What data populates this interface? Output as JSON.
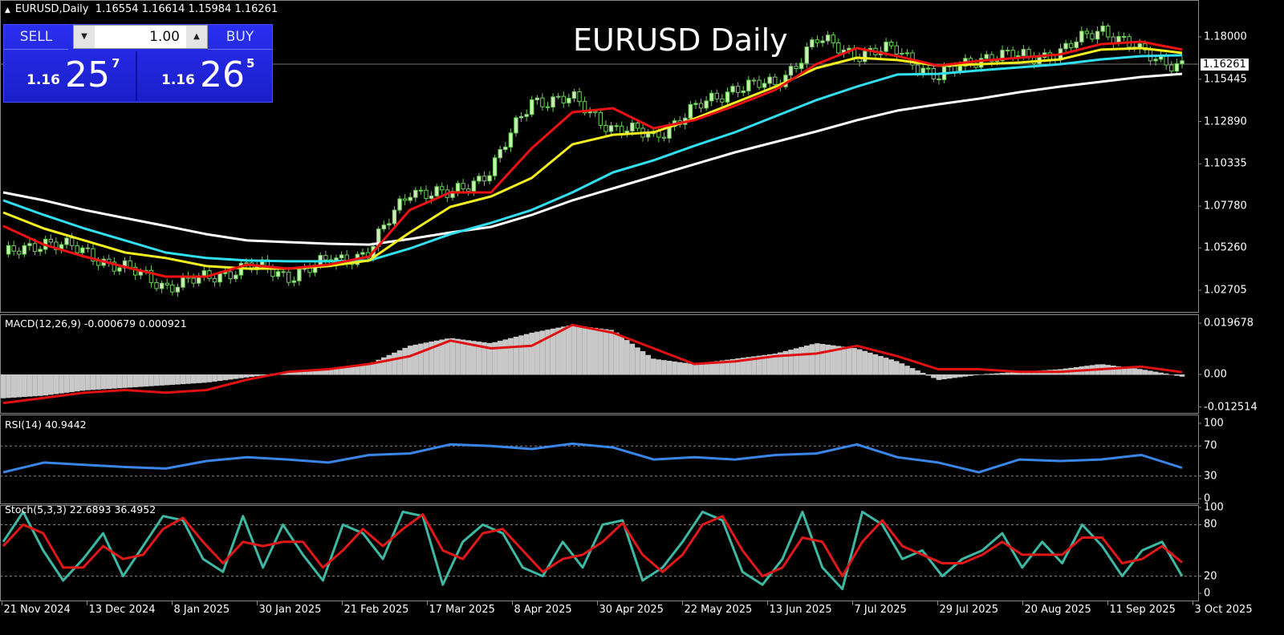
{
  "header": {
    "symbol": "EURUSD,Daily",
    "ohlc": "1.16554 1.16614 1.15984 1.16261"
  },
  "chart_title": "EURUSD Daily",
  "trade_panel": {
    "sell_label": "SELL",
    "buy_label": "BUY",
    "lot": "1.00",
    "sell_prefix": "1.16",
    "sell_big": "25",
    "sell_sup": "7",
    "buy_prefix": "1.16",
    "buy_big": "26",
    "buy_sup": "5"
  },
  "colors": {
    "bull": "#c8f0b0",
    "wick": "#6ccf5a",
    "ma_red": "#ee1111",
    "ma_yellow": "#f4f020",
    "ma_cyan": "#30e0f0",
    "ma_white": "#ffffff",
    "macd_hist": "#c8c8c8",
    "macd_signal": "#e01010",
    "rsi": "#3a86e8",
    "stoch_k": "#3cb8a4",
    "stoch_d": "#e01818"
  },
  "chart_data": [
    {
      "type": "candlestick",
      "panel": "price",
      "x_tick_labels": [
        "21 Nov 2024",
        "13 Dec 2024",
        "8 Jan 2025",
        "30 Jan 2025",
        "21 Feb 2025",
        "17 Mar 2025",
        "8 Apr 2025",
        "30 Apr 2025",
        "22 May 2025",
        "13 Jun 2025",
        "7 Jul 2025",
        "29 Jul 2025",
        "20 Aug 2025",
        "11 Sep 2025",
        "3 Oct 2025"
      ],
      "y_tick_labels": [
        "1.18000",
        "1.15445",
        "1.12890",
        "1.10335",
        "1.07780",
        "1.05260",
        "1.02705"
      ],
      "ylim": [
        1.018,
        1.196
      ],
      "current_price": "1.16261",
      "close_samples": [
        1.047,
        1.057,
        1.05,
        1.04,
        1.03,
        1.034,
        1.042,
        1.036,
        1.044,
        1.05,
        1.088,
        1.084,
        1.1,
        1.142,
        1.142,
        1.125,
        1.12,
        1.136,
        1.15,
        1.151,
        1.178,
        1.17,
        1.172,
        1.155,
        1.168,
        1.168,
        1.17,
        1.186,
        1.17,
        1.163
      ],
      "series": [
        {
          "key": "ma_white",
          "values": [
            1.0861,
            1.0813,
            1.0755,
            1.0706,
            1.0658,
            1.0609,
            1.0571,
            1.0561,
            1.0551,
            1.0546,
            1.058,
            1.0619,
            1.0653,
            1.0725,
            1.0813,
            1.0885,
            1.0958,
            1.1031,
            1.1103,
            1.1166,
            1.1229,
            1.1297,
            1.1355,
            1.1393,
            1.1427,
            1.1466,
            1.15,
            1.1529,
            1.1558,
            1.1577
          ]
        },
        {
          "key": "ma_cyan",
          "values": [
            1.0813,
            1.0725,
            1.0643,
            1.0571,
            1.0498,
            1.0465,
            1.045,
            1.0445,
            1.0445,
            1.045,
            1.0522,
            1.0609,
            1.0677,
            1.0755,
            1.0861,
            1.0982,
            1.1055,
            1.1142,
            1.1224,
            1.1321,
            1.1418,
            1.15,
            1.1573,
            1.1577,
            1.1597,
            1.1616,
            1.1635,
            1.1664,
            1.1684,
            1.1689
          ]
        },
        {
          "key": "ma_yellow",
          "values": [
            1.074,
            1.0643,
            1.0571,
            1.0498,
            1.0465,
            1.0416,
            1.0401,
            1.0401,
            1.0416,
            1.045,
            1.0619,
            1.0774,
            1.0837,
            1.0948,
            1.1151,
            1.1209,
            1.1224,
            1.1306,
            1.1403,
            1.15,
            1.1611,
            1.1674,
            1.166,
            1.1626,
            1.1635,
            1.1645,
            1.1664,
            1.1723,
            1.1732,
            1.1703
          ]
        },
        {
          "key": "ma_red",
          "values": [
            1.0658,
            1.0546,
            1.0474,
            1.0411,
            1.0353,
            1.0353,
            1.0425,
            1.0401,
            1.0425,
            1.0474,
            1.0755,
            1.0861,
            1.0861,
            1.1127,
            1.1345,
            1.1369,
            1.1248,
            1.1297,
            1.1384,
            1.1481,
            1.1635,
            1.1732,
            1.1684,
            1.1626,
            1.1655,
            1.1674,
            1.1694,
            1.1756,
            1.1771,
            1.1723
          ]
        }
      ]
    },
    {
      "type": "bar+line",
      "panel": "macd",
      "label": "MACD(12,26,9) -0.000679 0.000921",
      "y_tick_labels": [
        "0.019678",
        "0.00",
        "-0.012514"
      ],
      "ylim": [
        -0.0138,
        0.0222
      ],
      "histogram": [
        -0.009,
        -0.008,
        -0.006,
        -0.005,
        -0.004,
        -0.003,
        -0.001,
        0.001,
        0.002,
        0.004,
        0.011,
        0.014,
        0.012,
        0.016,
        0.019,
        0.017,
        0.006,
        0.004,
        0.006,
        0.008,
        0.012,
        0.01,
        0.005,
        -0.002,
        0.0,
        0.001,
        0.002,
        0.004,
        0.002,
        -0.0007
      ],
      "signal": [
        -0.011,
        -0.009,
        -0.007,
        -0.006,
        -0.007,
        -0.006,
        -0.002,
        0.001,
        0.002,
        0.004,
        0.007,
        0.013,
        0.01,
        0.011,
        0.019,
        0.016,
        0.01,
        0.004,
        0.005,
        0.007,
        0.008,
        0.011,
        0.007,
        0.002,
        0.002,
        0.001,
        0.001,
        0.002,
        0.003,
        0.0009
      ]
    },
    {
      "type": "line",
      "panel": "rsi",
      "label": "RSI(14) 40.9442",
      "y_tick_labels": [
        "100",
        "70",
        "30",
        "0"
      ],
      "levels": [
        70,
        30
      ],
      "ylim": [
        0,
        100
      ],
      "values": [
        35,
        48,
        45,
        42,
        40,
        50,
        55,
        52,
        48,
        58,
        60,
        72,
        70,
        66,
        73,
        68,
        52,
        55,
        52,
        58,
        60,
        72,
        55,
        48,
        35,
        52,
        50,
        52,
        58,
        41
      ]
    },
    {
      "type": "line",
      "panel": "stoch",
      "label": "Stoch(5,3,3) 22.6893 36.4952",
      "y_tick_labels": [
        "100",
        "80",
        "20",
        "0"
      ],
      "levels": [
        80,
        20
      ],
      "ylim": [
        0,
        100
      ],
      "k": [
        60,
        95,
        50,
        15,
        40,
        70,
        20,
        55,
        90,
        85,
        40,
        25,
        90,
        30,
        80,
        45,
        15,
        80,
        70,
        40,
        95,
        90,
        10,
        60,
        80,
        70,
        30,
        20,
        60,
        30,
        80,
        85,
        15,
        30,
        60,
        95,
        85,
        25,
        10,
        40,
        95,
        30,
        5,
        95,
        80,
        40,
        50,
        20,
        40,
        50,
        70,
        30,
        60,
        35,
        80,
        55,
        20,
        50,
        60,
        20
      ],
      "d": [
        55,
        80,
        70,
        30,
        30,
        55,
        40,
        45,
        75,
        88,
        60,
        35,
        60,
        55,
        60,
        60,
        30,
        50,
        75,
        55,
        75,
        92,
        50,
        40,
        70,
        75,
        50,
        25,
        40,
        45,
        60,
        82,
        45,
        25,
        45,
        80,
        90,
        50,
        20,
        30,
        65,
        60,
        20,
        60,
        85,
        55,
        45,
        35,
        35,
        45,
        60,
        45,
        45,
        45,
        65,
        65,
        35,
        40,
        55,
        36
      ]
    }
  ]
}
